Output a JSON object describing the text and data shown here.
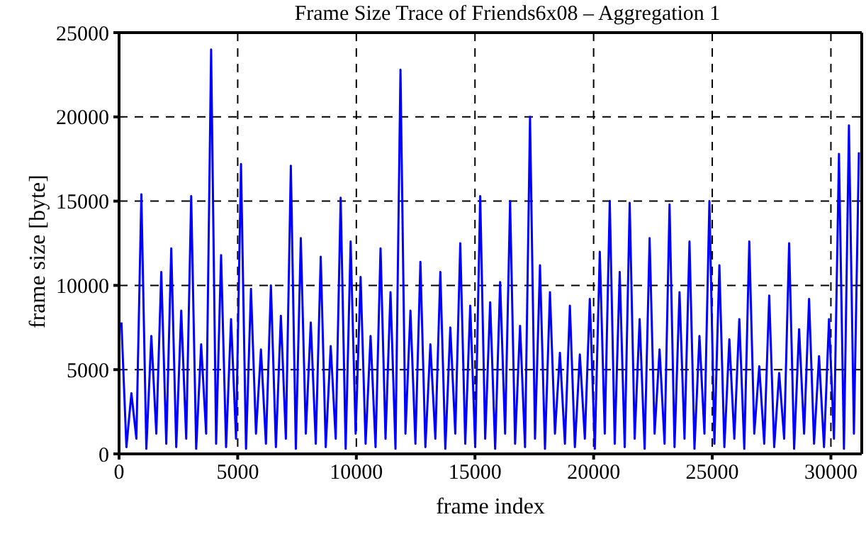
{
  "chart_data": {
    "type": "line",
    "title": "Frame Size Trace of Friends6x08 – Aggregation 1",
    "xlabel": "frame index",
    "ylabel": "frame size [byte]",
    "x": [
      100,
      310,
      520,
      730,
      940,
      1150,
      1360,
      1570,
      1780,
      1990,
      2200,
      2410,
      2620,
      2830,
      3040,
      3250,
      3460,
      3670,
      3880,
      4090,
      4300,
      4510,
      4720,
      4930,
      5140,
      5350,
      5560,
      5770,
      5980,
      6190,
      6400,
      6610,
      6820,
      7030,
      7240,
      7450,
      7660,
      7870,
      8080,
      8290,
      8500,
      8710,
      8920,
      9130,
      9340,
      9550,
      9760,
      9970,
      10180,
      10390,
      10600,
      10810,
      11020,
      11230,
      11440,
      11650,
      11860,
      12070,
      12280,
      12490,
      12700,
      12910,
      13120,
      13330,
      13540,
      13750,
      13960,
      14170,
      14380,
      14590,
      14800,
      15010,
      15220,
      15430,
      15640,
      15850,
      16060,
      16270,
      16480,
      16690,
      16900,
      17110,
      17320,
      17530,
      17740,
      17950,
      18160,
      18370,
      18580,
      18790,
      19000,
      19210,
      19420,
      19630,
      19840,
      20050,
      20260,
      20470,
      20680,
      20890,
      21100,
      21310,
      21520,
      21730,
      21940,
      22150,
      22360,
      22570,
      22780,
      22990,
      23200,
      23410,
      23620,
      23830,
      24040,
      24250,
      24460,
      24670,
      24880,
      25090,
      25300,
      25510,
      25720,
      25930,
      26140,
      26350,
      26560,
      26770,
      26980,
      27190,
      27400,
      27610,
      27820,
      28030,
      28240,
      28450,
      28660,
      28870,
      29080,
      29290,
      29500,
      29710,
      29920,
      30130,
      30340,
      30550,
      30760,
      30970,
      31180
    ],
    "series": [
      {
        "color": "#0000ff",
        "values": [
          7800,
          400,
          3600,
          900,
          15400,
          300,
          7000,
          1200,
          10800,
          600,
          12200,
          400,
          8500,
          900,
          15300,
          300,
          6500,
          1200,
          24000,
          600,
          11800,
          400,
          8000,
          900,
          17200,
          300,
          9800,
          1200,
          6200,
          600,
          10000,
          400,
          8200,
          900,
          17100,
          300,
          12800,
          1200,
          7800,
          600,
          11700,
          400,
          6400,
          900,
          15200,
          300,
          12600,
          1200,
          10500,
          600,
          7000,
          400,
          12200,
          900,
          9600,
          300,
          22800,
          1200,
          8500,
          600,
          11400,
          400,
          6500,
          900,
          10800,
          300,
          7500,
          1200,
          12500,
          600,
          8800,
          400,
          15300,
          900,
          9000,
          300,
          10200,
          1200,
          15000,
          600,
          7600,
          400,
          20000,
          900,
          11200,
          300,
          9600,
          1200,
          6000,
          600,
          8800,
          400,
          5900,
          900,
          9200,
          300,
          12000,
          1200,
          15000,
          600,
          10800,
          400,
          14900,
          900,
          8000,
          300,
          12800,
          1200,
          6200,
          600,
          14800,
          400,
          9600,
          900,
          12600,
          300,
          7000,
          1200,
          15000,
          600,
          11200,
          400,
          6800,
          900,
          8000,
          300,
          12600,
          1200,
          5200,
          600,
          9400,
          400,
          4800,
          900,
          12500,
          300,
          7400,
          1200,
          9200,
          600,
          5800,
          400,
          8000,
          900,
          17800,
          300,
          19500,
          1200,
          17900
        ]
      }
    ],
    "xlim": [
      0,
      31300
    ],
    "xticks": [
      0,
      5000,
      10000,
      15000,
      20000,
      25000,
      30000
    ],
    "ylim": [
      0,
      25000
    ],
    "yticks": [
      0,
      5000,
      10000,
      15000,
      20000,
      25000
    ],
    "grid": true,
    "line_style": "solid",
    "marker": "none"
  }
}
